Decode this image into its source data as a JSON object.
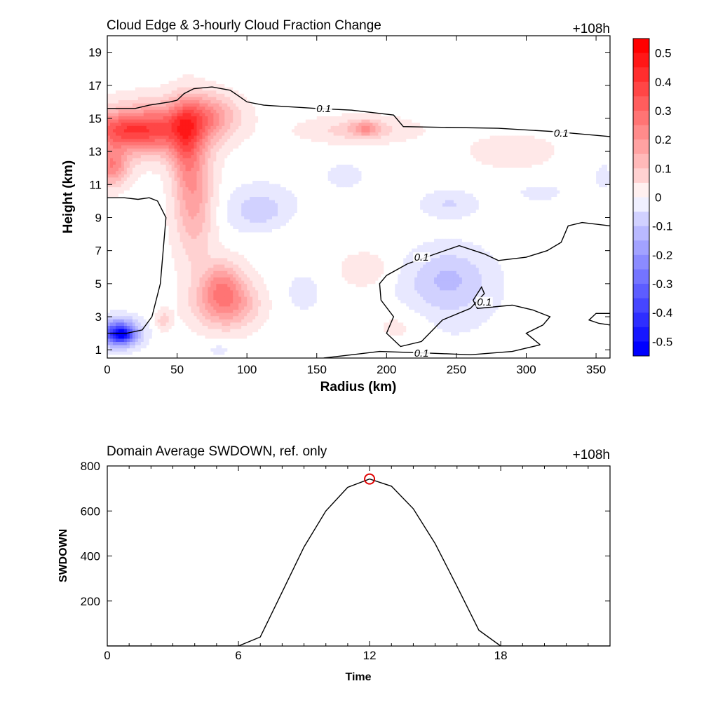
{
  "chart_data": [
    {
      "type": "heatmap",
      "title": "Cloud Edge & 3-hourly Cloud Fraction Change",
      "time_label": "+108h",
      "xlabel": "Radius (km)",
      "ylabel": "Height (km)",
      "xlim": [
        0,
        360
      ],
      "ylim": [
        0.5,
        20
      ],
      "xticks": [
        0,
        50,
        100,
        150,
        200,
        250,
        300,
        350
      ],
      "yticks": [
        1,
        3,
        5,
        7,
        9,
        11,
        13,
        15,
        17,
        19
      ],
      "grid": false,
      "colorbar": {
        "range": [
          -0.55,
          0.55
        ],
        "step": 0.05,
        "ticks": [
          0.5,
          0.4,
          0.3,
          0.2,
          0.1,
          0,
          -0.1,
          -0.2,
          -0.3,
          -0.4,
          -0.5
        ],
        "pos_color": "#ff0000",
        "neg_color": "#0000ff",
        "zero_color": "#ffffff"
      },
      "anomalies": [
        {
          "x": 33,
          "y": 14.3,
          "rx": 38,
          "ry": 1.6,
          "value": 0.3
        },
        {
          "x": 8,
          "y": 14.3,
          "rx": 30,
          "ry": 1.0,
          "value": 0.2
        },
        {
          "x": 70,
          "y": 15.2,
          "rx": 24,
          "ry": 1.3,
          "value": 0.2
        },
        {
          "x": 3,
          "y": 12.1,
          "rx": 12,
          "ry": 1.2,
          "value": 0.25
        },
        {
          "x": 62,
          "y": 10.5,
          "rx": 14,
          "ry": 4.0,
          "value": 0.2
        },
        {
          "x": 56,
          "y": 13.5,
          "rx": 10,
          "ry": 2.5,
          "value": 0.15
        },
        {
          "x": 85,
          "y": 3.8,
          "rx": 22,
          "ry": 1.5,
          "value": 0.25
        },
        {
          "x": 82,
          "y": 5.2,
          "rx": 14,
          "ry": 1.3,
          "value": 0.15
        },
        {
          "x": 180,
          "y": 14.3,
          "rx": 40,
          "ry": 0.8,
          "value": 0.1
        },
        {
          "x": 185,
          "y": 14.4,
          "rx": 10,
          "ry": 0.5,
          "value": 0.15
        },
        {
          "x": 290,
          "y": 13.0,
          "rx": 30,
          "ry": 1.0,
          "value": 0.07
        },
        {
          "x": 120,
          "y": 8.0,
          "rx": 30,
          "ry": 1.5,
          "value": 0.04
        },
        {
          "x": 185,
          "y": 5.8,
          "rx": 20,
          "ry": 1.2,
          "value": 0.06
        },
        {
          "x": 210,
          "y": 2.5,
          "rx": 22,
          "ry": 1.2,
          "value": 0.05
        },
        {
          "x": 40,
          "y": 2.8,
          "rx": 6,
          "ry": 0.6,
          "value": 0.1
        },
        {
          "x": 8,
          "y": 2.0,
          "rx": 14,
          "ry": 0.8,
          "value": -0.45
        },
        {
          "x": 11,
          "y": 1.9,
          "rx": 6,
          "ry": 0.35,
          "value": -0.2
        },
        {
          "x": 110,
          "y": 9.3,
          "rx": 24,
          "ry": 1.5,
          "value": -0.12
        },
        {
          "x": 245,
          "y": 5.4,
          "rx": 28,
          "ry": 1.8,
          "value": -0.1
        },
        {
          "x": 240,
          "y": 4.0,
          "rx": 40,
          "ry": 2.5,
          "value": -0.05
        },
        {
          "x": 245,
          "y": 9.8,
          "rx": 20,
          "ry": 0.8,
          "value": -0.08
        },
        {
          "x": 170,
          "y": 11.5,
          "rx": 15,
          "ry": 0.8,
          "value": -0.05
        },
        {
          "x": 140,
          "y": 4.5,
          "rx": 16,
          "ry": 1.5,
          "value": -0.04
        },
        {
          "x": 80,
          "y": 1.0,
          "rx": 8,
          "ry": 0.4,
          "value": -0.05
        },
        {
          "x": 310,
          "y": 10.5,
          "rx": 20,
          "ry": 0.6,
          "value": -0.04
        },
        {
          "x": 355,
          "y": 11.5,
          "rx": 6,
          "ry": 0.8,
          "value": -0.05
        }
      ],
      "contours": [
        {
          "level": 0.1,
          "points": [
            [
              0,
              15.6
            ],
            [
              20,
              15.6
            ],
            [
              30,
              15.8
            ],
            [
              45,
              16.0
            ],
            [
              50,
              16.1
            ],
            [
              55,
              16.5
            ],
            [
              62,
              16.8
            ],
            [
              75,
              16.9
            ],
            [
              88,
              16.7
            ],
            [
              95,
              16.3
            ],
            [
              100,
              16.0
            ],
            [
              112,
              15.8
            ],
            [
              150,
              15.6
            ],
            [
              175,
              15.5
            ],
            [
              205,
              15.2
            ],
            [
              212,
              14.5
            ],
            [
              280,
              14.4
            ],
            [
              320,
              14.2
            ],
            [
              360,
              13.9
            ]
          ]
        },
        {
          "level": 0.1,
          "points": [
            [
              0,
              10.2
            ],
            [
              12,
              10.2
            ],
            [
              22,
              10.1
            ],
            [
              30,
              10.2
            ],
            [
              36,
              10.0
            ],
            [
              42,
              9.0
            ],
            [
              40,
              7.0
            ],
            [
              38,
              5.0
            ],
            [
              32,
              3.0
            ],
            [
              25,
              2.2
            ],
            [
              14,
              2.0
            ],
            [
              5,
              2.0
            ],
            [
              0,
              2.0
            ]
          ]
        },
        {
          "level": 0.1,
          "points": [
            [
              155,
              0.5
            ],
            [
              195,
              0.9
            ],
            [
              230,
              0.8
            ],
            [
              260,
              0.7
            ],
            [
              290,
              0.9
            ],
            [
              310,
              1.3
            ]
          ]
        },
        {
          "level": 0.1,
          "points": [
            [
              310,
              1.3
            ],
            [
              300,
              2.0
            ],
            [
              312,
              2.5
            ],
            [
              317,
              3.0
            ],
            [
              305,
              3.4
            ],
            [
              290,
              3.7
            ],
            [
              265,
              3.5
            ],
            [
              262,
              4.0
            ],
            [
              268,
              4.8
            ],
            [
              270,
              4.4
            ],
            [
              260,
              3.5
            ],
            [
              240,
              2.8
            ],
            [
              225,
              1.5
            ],
            [
              210,
              1.2
            ],
            [
              200,
              2.0
            ],
            [
              205,
              3.0
            ],
            [
              196,
              4.0
            ],
            [
              195,
              5.0
            ],
            [
              200,
              5.5
            ],
            [
              215,
              6.2
            ],
            [
              235,
              6.8
            ],
            [
              252,
              7.3
            ],
            [
              270,
              6.8
            ],
            [
              280,
              6.4
            ],
            [
              300,
              6.6
            ],
            [
              315,
              7.0
            ],
            [
              325,
              7.5
            ],
            [
              330,
              8.5
            ],
            [
              340,
              8.7
            ],
            [
              360,
              8.5
            ]
          ]
        },
        {
          "level": 0.1,
          "points": [
            [
              360,
              2.5
            ],
            [
              352,
              2.6
            ],
            [
              345,
              2.8
            ],
            [
              350,
              3.2
            ],
            [
              360,
              3.2
            ]
          ]
        }
      ],
      "contour_labels": [
        {
          "text": "0.1",
          "x": 155,
          "y": 15.6
        },
        {
          "text": "0.1",
          "x": 325,
          "y": 14.1
        },
        {
          "text": "0.1",
          "x": 225,
          "y": 6.6
        },
        {
          "text": "0.1",
          "x": 270,
          "y": 3.9
        },
        {
          "text": "0.1",
          "x": 225,
          "y": 0.8
        }
      ]
    },
    {
      "type": "line",
      "title": "Domain Average SWDOWN, ref. only",
      "time_label": "+108h",
      "xlabel": "Time",
      "ylabel": "SWDOWN",
      "xlim": [
        0,
        23
      ],
      "ylim": [
        0,
        800
      ],
      "xticks": [
        0,
        6,
        12,
        18
      ],
      "yticks": [
        200,
        400,
        600,
        800
      ],
      "grid": false,
      "line_color": "#000000",
      "marker_color": "#e00000",
      "series": [
        {
          "x": [
            0,
            1,
            2,
            3,
            4,
            5,
            6,
            7,
            8,
            9,
            10,
            11,
            12,
            13,
            14,
            15,
            16,
            17,
            18,
            19,
            20,
            21,
            22,
            23
          ],
          "values": [
            0,
            0,
            0,
            0,
            0,
            0,
            0,
            40,
            240,
            440,
            600,
            705,
            742,
            710,
            610,
            455,
            265,
            70,
            0,
            0,
            0,
            0,
            0,
            0
          ]
        }
      ],
      "highlight": {
        "x": 12,
        "y": 742
      }
    }
  ]
}
